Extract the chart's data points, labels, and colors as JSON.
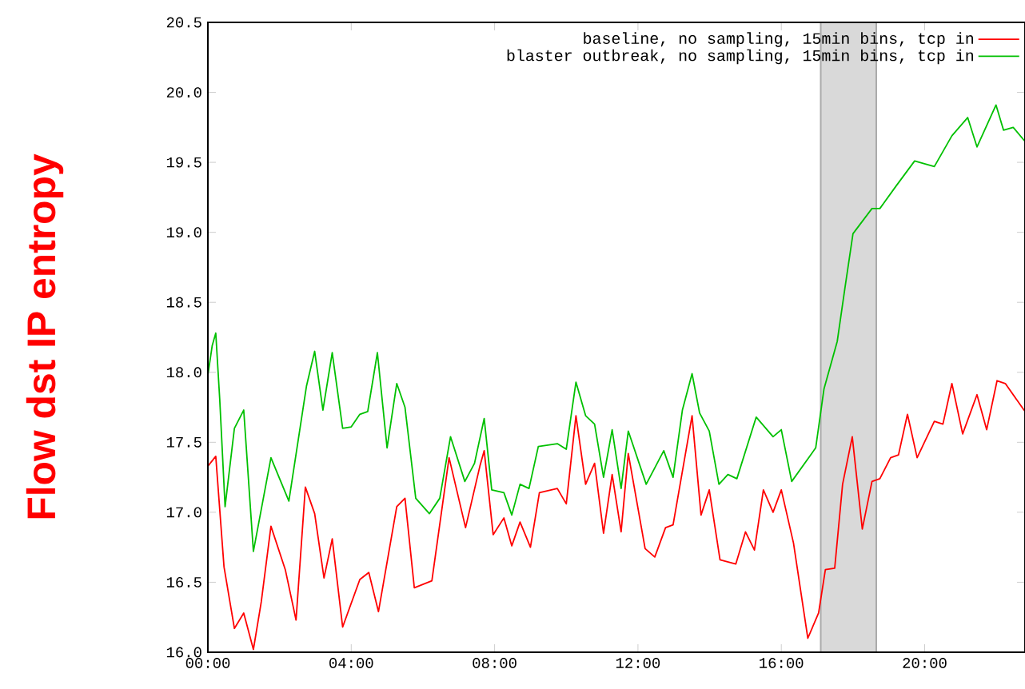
{
  "chart_data": {
    "type": "line",
    "ylabel": "Flow dst IP entropy",
    "legend": "top right",
    "grid": false,
    "marker": "none",
    "line_style": "solid",
    "xlim": [
      0,
      22.8
    ],
    "ylim": [
      16.0,
      20.5
    ],
    "xticks": [
      {
        "value": 0,
        "label": "00:00"
      },
      {
        "value": 4,
        "label": "04:00"
      },
      {
        "value": 8,
        "label": "08:00"
      },
      {
        "value": 12,
        "label": "12:00"
      },
      {
        "value": 16,
        "label": "16:00"
      },
      {
        "value": 20,
        "label": "20:00"
      }
    ],
    "yticks": [
      {
        "value": 16.0,
        "label": "16.0"
      },
      {
        "value": 16.5,
        "label": "16.5"
      },
      {
        "value": 17.0,
        "label": "17.0"
      },
      {
        "value": 17.5,
        "label": "17.5"
      },
      {
        "value": 18.0,
        "label": "18.0"
      },
      {
        "value": 18.5,
        "label": "18.5"
      },
      {
        "value": 19.0,
        "label": "19.0"
      },
      {
        "value": 19.5,
        "label": "19.5"
      },
      {
        "value": 20.0,
        "label": "20.0"
      },
      {
        "value": 20.5,
        "label": "20.5"
      }
    ],
    "bands": [
      {
        "axis": "x",
        "from": 17.1,
        "to": 18.65,
        "color": "#d9d9d9"
      }
    ],
    "series": [
      {
        "name": "baseline, no sampling, 15min bins, tcp in",
        "color": "#ff0000",
        "x": [
          0,
          0.22,
          0.45,
          0.74,
          1.0,
          1.27,
          1.49,
          1.76,
          2.16,
          2.46,
          2.72,
          2.98,
          3.24,
          3.47,
          3.76,
          4.24,
          4.49,
          4.76,
          5.27,
          5.5,
          5.76,
          6.25,
          6.73,
          7.19,
          7.59,
          7.71,
          7.96,
          8.26,
          8.48,
          8.71,
          9.0,
          9.25,
          9.75,
          10.0,
          10.27,
          10.54,
          10.79,
          11.04,
          11.28,
          11.53,
          11.73,
          12.2,
          12.47,
          12.77,
          12.98,
          13.51,
          13.76,
          13.99,
          14.29,
          14.73,
          15.0,
          15.25,
          15.5,
          15.77,
          16.0,
          16.34,
          16.74,
          17.04,
          17.23,
          17.49,
          17.71,
          17.98,
          18.26,
          18.53,
          18.75,
          19.05,
          19.27,
          19.52,
          19.79,
          20.27,
          20.51,
          20.76,
          21.06,
          21.46,
          21.73,
          22.02,
          22.25,
          22.8
        ],
        "values": [
          17.33,
          17.4,
          16.61,
          16.17,
          16.28,
          16.02,
          16.36,
          16.9,
          16.59,
          16.23,
          17.18,
          16.99,
          16.53,
          16.81,
          16.18,
          16.52,
          16.57,
          16.29,
          17.04,
          17.1,
          16.46,
          16.51,
          17.39,
          16.89,
          17.33,
          17.44,
          16.84,
          16.96,
          16.76,
          16.93,
          16.75,
          17.14,
          17.17,
          17.06,
          17.69,
          17.2,
          17.35,
          16.85,
          17.27,
          16.86,
          17.42,
          16.74,
          16.68,
          16.89,
          16.91,
          17.69,
          16.98,
          17.16,
          16.66,
          16.63,
          16.86,
          16.73,
          17.16,
          17.0,
          17.16,
          16.78,
          16.1,
          16.28,
          16.59,
          16.6,
          17.2,
          17.54,
          16.88,
          17.22,
          17.24,
          17.39,
          17.41,
          17.7,
          17.39,
          17.65,
          17.63,
          17.92,
          17.56,
          17.84,
          17.59,
          17.94,
          17.92,
          17.72
        ]
      },
      {
        "name": "blaster outbreak, no sampling, 15min bins, tcp in",
        "color": "#00c000",
        "x": [
          0,
          0.12,
          0.22,
          0.33,
          0.48,
          0.74,
          1.0,
          1.27,
          1.76,
          2.26,
          2.75,
          2.98,
          3.21,
          3.47,
          3.76,
          4.0,
          4.24,
          4.46,
          4.73,
          5.0,
          5.27,
          5.5,
          5.8,
          6.18,
          6.47,
          6.77,
          7.17,
          7.44,
          7.71,
          7.92,
          8.26,
          8.48,
          8.71,
          8.96,
          9.22,
          9.75,
          10.0,
          10.27,
          10.54,
          10.79,
          11.04,
          11.28,
          11.53,
          11.73,
          12.23,
          12.72,
          12.98,
          13.24,
          13.51,
          13.72,
          13.99,
          14.26,
          14.51,
          14.76,
          15.3,
          15.77,
          16.0,
          16.29,
          16.96,
          17.19,
          17.56,
          17.78,
          18.0,
          18.53,
          18.75,
          19.2,
          19.72,
          20.27,
          20.76,
          21.2,
          21.46,
          21.99,
          22.2,
          22.47,
          22.8
        ],
        "values": [
          17.98,
          18.19,
          18.28,
          17.81,
          17.04,
          17.6,
          17.73,
          16.72,
          17.39,
          17.08,
          17.9,
          18.15,
          17.73,
          18.14,
          17.6,
          17.61,
          17.7,
          17.72,
          18.14,
          17.46,
          17.92,
          17.75,
          17.1,
          16.99,
          17.1,
          17.54,
          17.22,
          17.35,
          17.67,
          17.16,
          17.14,
          16.98,
          17.2,
          17.17,
          17.47,
          17.49,
          17.45,
          17.93,
          17.69,
          17.63,
          17.25,
          17.59,
          17.17,
          17.58,
          17.2,
          17.44,
          17.25,
          17.73,
          17.99,
          17.71,
          17.58,
          17.2,
          17.27,
          17.24,
          17.68,
          17.54,
          17.59,
          17.22,
          17.46,
          17.88,
          18.22,
          18.61,
          18.99,
          19.17,
          19.17,
          19.33,
          19.51,
          19.47,
          19.69,
          19.82,
          19.61,
          19.91,
          19.73,
          19.75,
          19.65
        ]
      }
    ]
  }
}
